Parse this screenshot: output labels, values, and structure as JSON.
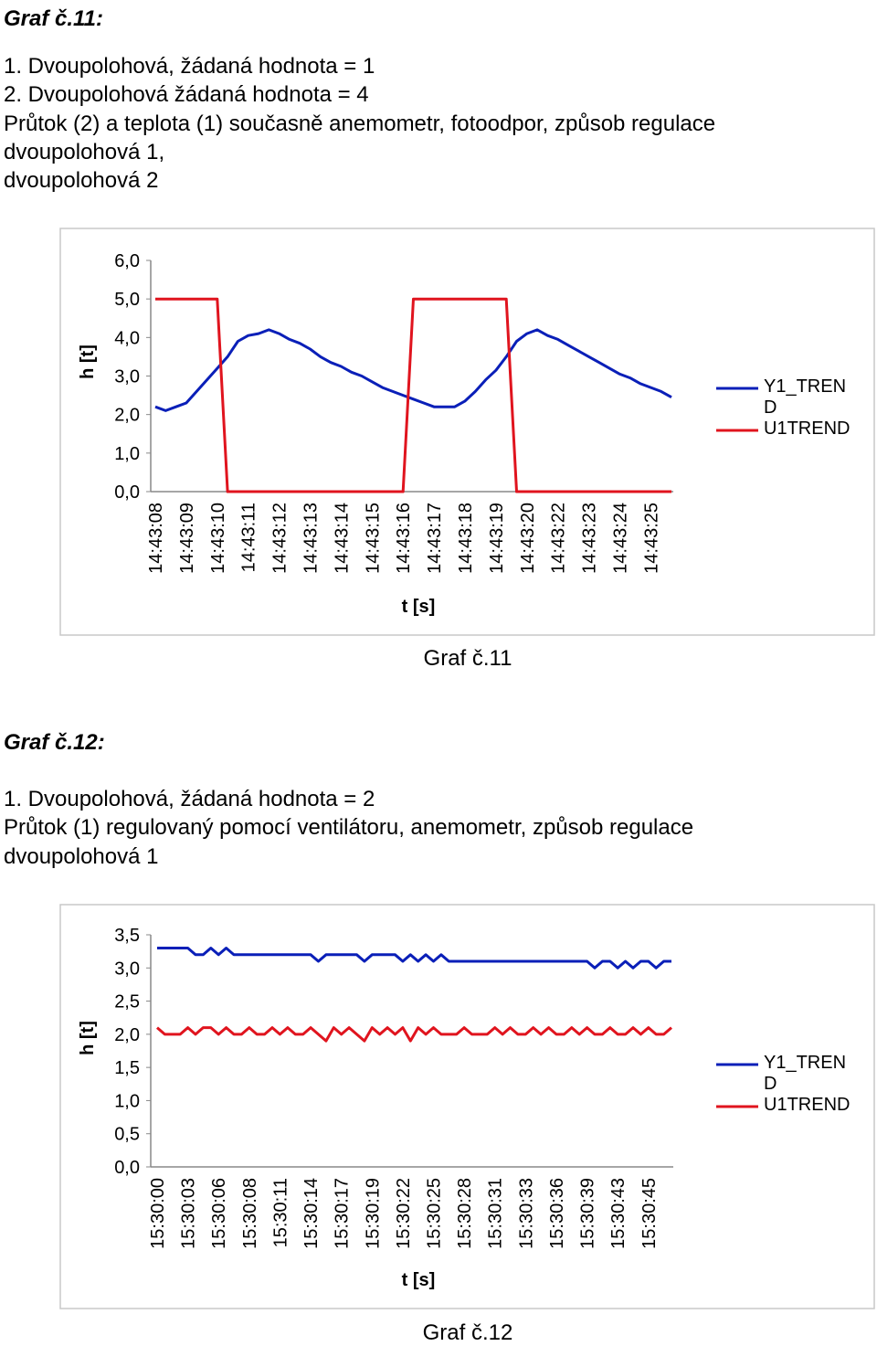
{
  "sections": [
    {
      "heading": "Graf č.11:",
      "lines": [
        "1. Dvoupolohová, žádaná hodnota = 1",
        "2. Dvoupolohová žádaná hodnota = 4",
        "Průtok (2) a teplota (1) současně anemometr, fotoodpor, způsob regulace",
        "dvoupolohová 1,",
        "dvoupolohová 2"
      ],
      "caption": "Graf č.11"
    },
    {
      "heading": "Graf č.12:",
      "lines": [
        "1. Dvoupolohová, žádaná hodnota = 2",
        "Průtok (1) regulovaný pomocí ventilátoru, anemometr, způsob regulace",
        "dvoupolohová 1"
      ],
      "caption": "Graf č.12"
    }
  ],
  "chart_data": [
    {
      "type": "line",
      "x_label": "t [s]",
      "y_label": "h [t]",
      "categories": [
        "14:43:08",
        null,
        null,
        "14:43:09",
        null,
        null,
        "14:43:10",
        null,
        null,
        "14:43:11",
        null,
        null,
        "14:43:12",
        null,
        null,
        "14:43:13",
        null,
        null,
        "14:43:14",
        null,
        null,
        "14:43:15",
        null,
        null,
        "14:43:16",
        null,
        null,
        "14:43:17",
        null,
        null,
        "14:43:18",
        null,
        null,
        "14:43:19",
        null,
        null,
        "14:43:20",
        null,
        null,
        "14:43:22",
        null,
        null,
        "14:43:23",
        null,
        null,
        "14:43:24",
        null,
        null,
        "14:43:25",
        null,
        null
      ],
      "ylim": [
        0,
        6
      ],
      "yticks": [
        {
          "value": 0,
          "label": "0,0"
        },
        {
          "value": 1,
          "label": "1,0"
        },
        {
          "value": 2,
          "label": "2,0"
        },
        {
          "value": 3,
          "label": "3,0"
        },
        {
          "value": 4,
          "label": "4,0"
        },
        {
          "value": 5,
          "label": "5,0"
        },
        {
          "value": 6,
          "label": "6,0"
        }
      ],
      "grid": false,
      "legend": "right",
      "series": [
        {
          "name": "Y1_TREND",
          "color": "#0a1fb8",
          "values": [
            2.2,
            2.1,
            2.2,
            2.3,
            2.6,
            2.9,
            3.2,
            3.5,
            3.9,
            4.05,
            4.1,
            4.2,
            4.1,
            3.95,
            3.85,
            3.7,
            3.5,
            3.35,
            3.25,
            3.1,
            3.0,
            2.85,
            2.7,
            2.6,
            2.5,
            2.4,
            2.3,
            2.2,
            2.2,
            2.2,
            2.35,
            2.6,
            2.9,
            3.15,
            3.5,
            3.9,
            4.1,
            4.2,
            4.05,
            3.95,
            3.8,
            3.65,
            3.5,
            3.35,
            3.2,
            3.05,
            2.95,
            2.8,
            2.7,
            2.6,
            2.45
          ]
        },
        {
          "name": "U1TREND",
          "color": "#e0141e",
          "values": [
            5,
            5,
            5,
            5,
            5,
            5,
            5,
            0,
            0,
            0,
            0,
            0,
            0,
            0,
            0,
            0,
            0,
            0,
            0,
            0,
            0,
            0,
            0,
            0,
            0,
            5,
            5,
            5,
            5,
            5,
            5,
            5,
            5,
            5,
            5,
            0,
            0,
            0,
            0,
            0,
            0,
            0,
            0,
            0,
            0,
            0,
            0,
            0,
            0,
            0,
            0
          ]
        }
      ]
    },
    {
      "type": "line",
      "x_label": "t [s]",
      "y_label": "h [t]",
      "categories": [
        "15:30:00",
        null,
        null,
        null,
        "15:30:03",
        null,
        null,
        null,
        "15:30:06",
        null,
        null,
        null,
        "15:30:08",
        null,
        null,
        null,
        "15:30:11",
        null,
        null,
        null,
        "15:30:14",
        null,
        null,
        null,
        "15:30:17",
        null,
        null,
        null,
        "15:30:19",
        null,
        null,
        null,
        "15:30:22",
        null,
        null,
        null,
        "15:30:25",
        null,
        null,
        null,
        "15:30:28",
        null,
        null,
        null,
        "15:30:31",
        null,
        null,
        null,
        "15:30:33",
        null,
        null,
        null,
        "15:30:36",
        null,
        null,
        null,
        "15:30:39",
        null,
        null,
        null,
        "15:30:43",
        null,
        null,
        null,
        "15:30:45",
        null,
        null,
        null
      ],
      "ylim": [
        0,
        3.5
      ],
      "yticks": [
        {
          "value": 0,
          "label": "0,0"
        },
        {
          "value": 0.5,
          "label": "0,5"
        },
        {
          "value": 1,
          "label": "1,0"
        },
        {
          "value": 1.5,
          "label": "1,5"
        },
        {
          "value": 2,
          "label": "2,0"
        },
        {
          "value": 2.5,
          "label": "2,5"
        },
        {
          "value": 3,
          "label": "3,0"
        },
        {
          "value": 3.5,
          "label": "3,5"
        }
      ],
      "grid": false,
      "legend": "right",
      "series": [
        {
          "name": "Y1_TREND",
          "color": "#0a1fb8",
          "values": [
            3.3,
            3.3,
            3.3,
            3.3,
            3.3,
            3.2,
            3.2,
            3.3,
            3.2,
            3.3,
            3.2,
            3.2,
            3.2,
            3.2,
            3.2,
            3.2,
            3.2,
            3.2,
            3.2,
            3.2,
            3.2,
            3.1,
            3.2,
            3.2,
            3.2,
            3.2,
            3.2,
            3.1,
            3.2,
            3.2,
            3.2,
            3.2,
            3.1,
            3.2,
            3.1,
            3.2,
            3.1,
            3.2,
            3.1,
            3.1,
            3.1,
            3.1,
            3.1,
            3.1,
            3.1,
            3.1,
            3.1,
            3.1,
            3.1,
            3.1,
            3.1,
            3.1,
            3.1,
            3.1,
            3.1,
            3.1,
            3.1,
            3.0,
            3.1,
            3.1,
            3.0,
            3.1,
            3.0,
            3.1,
            3.1,
            3.0,
            3.1,
            3.1
          ]
        },
        {
          "name": "U1TREND",
          "color": "#e0141e",
          "values": [
            2.1,
            2.0,
            2.0,
            2.0,
            2.1,
            2.0,
            2.1,
            2.1,
            2.0,
            2.1,
            2.0,
            2.0,
            2.1,
            2.0,
            2.0,
            2.1,
            2.0,
            2.1,
            2.0,
            2.0,
            2.1,
            2.0,
            1.9,
            2.1,
            2.0,
            2.1,
            2.0,
            1.9,
            2.1,
            2.0,
            2.1,
            2.0,
            2.1,
            1.9,
            2.1,
            2.0,
            2.1,
            2.0,
            2.0,
            2.0,
            2.1,
            2.0,
            2.0,
            2.0,
            2.1,
            2.0,
            2.1,
            2.0,
            2.0,
            2.1,
            2.0,
            2.1,
            2.0,
            2.0,
            2.1,
            2.0,
            2.1,
            2.0,
            2.0,
            2.1,
            2.0,
            2.0,
            2.1,
            2.0,
            2.1,
            2.0,
            2.0,
            2.1
          ]
        }
      ]
    }
  ]
}
